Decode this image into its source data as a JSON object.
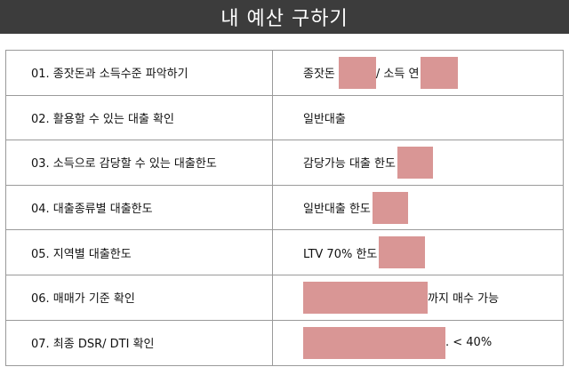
{
  "title": "내 예산 구하기",
  "redact_color": "#d99695",
  "rows": [
    {
      "step": "01. 종잣돈과 소득수준 파악하기",
      "r1": "종잣돈",
      "r2": " / 소득 연",
      "r3": ""
    },
    {
      "step": "02. 활용할 수 있는 대출 확인",
      "r1": "일반대출",
      "r2": "",
      "r3": ""
    },
    {
      "step": "03. 소득으로 감당할 수 있는 대출한도",
      "r1": "감당가능 대출 한도",
      "r2": "",
      "r3": ""
    },
    {
      "step": "04. 대출종류별 대출한도",
      "r1": "일반대출 한도",
      "r2": "",
      "r3": ""
    },
    {
      "step": "05. 지역별 대출한도",
      "r1": "LTV 70% 한도",
      "r2": "",
      "r3": ""
    },
    {
      "step": "06. 매매가 기준 확인",
      "r1": "",
      "r2": "까지 매수 가능",
      "r3": ""
    },
    {
      "step": "07. 최종 DSR/ DTI 확인",
      "r1": "",
      "r2": ". < 40%",
      "r3": ""
    }
  ]
}
